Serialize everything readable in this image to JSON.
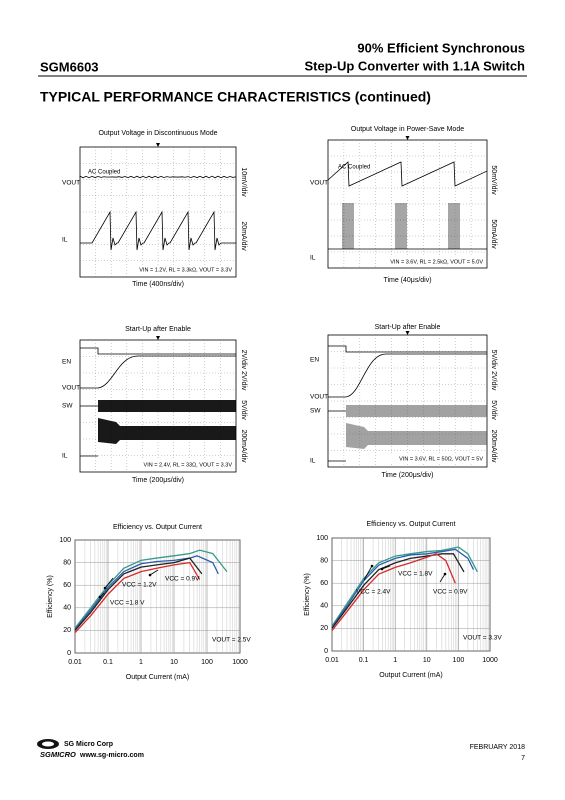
{
  "header": {
    "part": "SGM6603",
    "title_lines": [
      "90% Efficient Synchronous",
      "Step-Up Converter with 1.1A Switch"
    ]
  },
  "section_title": "TYPICAL PERFORMANCE CHARACTERISTICS (continued)",
  "scopes": [
    {
      "title": "Output Voltage in Discontinuous Mode",
      "labels": [
        "VOUT",
        "IL"
      ],
      "note": "AC Coupled",
      "scales": [
        "10mV/div",
        "20mA/div"
      ],
      "conditions": "VIN = 1.2V, RL = 3.3kΩ, VOUT = 3.3V",
      "time": "Time (400ns/div)"
    },
    {
      "title": "Output Voltage in Power-Save Mode",
      "labels": [
        "VOUT",
        "IL"
      ],
      "note": "AC Coupled",
      "scales": [
        "50mV/div",
        "50mA/div"
      ],
      "conditions": "VIN = 3.6V, RL = 2.5kΩ, VOUT = 5.0V",
      "time": "Time (40μs/div)"
    },
    {
      "title": "Start-Up after Enable",
      "labels": [
        "EN",
        "VOUT",
        "SW",
        "IL"
      ],
      "scales": [
        "2V/div 2V/div",
        "5V/div",
        "200mA/div"
      ],
      "conditions": "VIN = 2.4V, RL = 33Ω, VOUT = 3.3V",
      "time": "Time (200μs/div)"
    },
    {
      "title": "Start-Up after Enable",
      "labels": [
        "EN",
        "VOUT",
        "SW",
        "IL"
      ],
      "scales": [
        "5V/div 2V/div",
        "5V/div",
        "200mA/div"
      ],
      "conditions": "VIN = 3.6V, RL = 50Ω, VOUT = 5V",
      "time": "Time (200μs/div)"
    }
  ],
  "charts": [
    {
      "type": "line",
      "title": "Efficiency vs. Output Current",
      "x_label": "Output Current (mA)",
      "y_label": "Efficiency (%)",
      "xscale": "log",
      "xlim": [
        0.01,
        1000
      ],
      "xticks": [
        0.01,
        0.1,
        1,
        10,
        100,
        1000
      ],
      "ylim": [
        0,
        100
      ],
      "yticks": [
        0,
        20,
        40,
        60,
        80,
        100
      ],
      "grid": true,
      "series": [
        {
          "color": "#3a9a8a",
          "x": [
            0.01,
            0.03,
            0.1,
            0.3,
            1,
            3,
            10,
            30,
            60,
            150,
            400
          ],
          "values": [
            22,
            40,
            60,
            75,
            82,
            84,
            86,
            88,
            91,
            88,
            72
          ]
        },
        {
          "color": "#2a5fb0",
          "x": [
            0.01,
            0.03,
            0.1,
            0.3,
            1,
            3,
            10,
            30,
            50,
            150,
            220
          ],
          "values": [
            21,
            38,
            58,
            72,
            79,
            81,
            82,
            84,
            86,
            80,
            70
          ]
        },
        {
          "color": "#222222",
          "x": [
            0.01,
            0.03,
            0.1,
            0.3,
            1,
            3,
            10,
            30,
            70
          ],
          "values": [
            20,
            36,
            56,
            70,
            76,
            78,
            80,
            84,
            70
          ]
        },
        {
          "color": "#d62a2a",
          "x": [
            0.01,
            0.03,
            0.1,
            0.3,
            1,
            3,
            10,
            30,
            60
          ],
          "values": [
            18,
            33,
            52,
            66,
            72,
            75,
            78,
            80,
            65
          ]
        }
      ],
      "annotations": [
        "VCC = 1.2V",
        "VCC = 0.9V",
        "VCC =1.8 V",
        "VOUT = 2.5V"
      ]
    },
    {
      "type": "line",
      "title": "Efficiency vs. Output Current",
      "x_label": "Output Current (mA)",
      "y_label": "Efficiency (%)",
      "xscale": "log",
      "xlim": [
        0.01,
        1000
      ],
      "xticks": [
        0.01,
        0.1,
        1,
        10,
        100,
        1000
      ],
      "ylim": [
        0,
        100
      ],
      "yticks": [
        0,
        20,
        40,
        60,
        80,
        100
      ],
      "grid": true,
      "series": [
        {
          "color": "#3a9a8a",
          "x": [
            0.01,
            0.03,
            0.1,
            0.3,
            1,
            3,
            10,
            30,
            100,
            200,
            400
          ],
          "values": [
            22,
            42,
            64,
            78,
            84,
            86,
            88,
            89,
            92,
            86,
            70
          ]
        },
        {
          "color": "#2a5fb0",
          "x": [
            0.01,
            0.03,
            0.1,
            0.3,
            1,
            3,
            10,
            30,
            80,
            200,
            300
          ],
          "values": [
            21,
            40,
            62,
            76,
            82,
            85,
            86,
            88,
            90,
            82,
            72
          ]
        },
        {
          "color": "#222222",
          "x": [
            0.01,
            0.03,
            0.1,
            0.3,
            1,
            3,
            10,
            30,
            70,
            150
          ],
          "values": [
            20,
            38,
            58,
            72,
            78,
            82,
            84,
            86,
            86,
            70
          ]
        },
        {
          "color": "#d62a2a",
          "x": [
            0.01,
            0.03,
            0.1,
            0.3,
            1,
            3,
            10,
            20,
            40,
            80
          ],
          "values": [
            18,
            35,
            54,
            68,
            74,
            78,
            83,
            86,
            80,
            60
          ]
        }
      ],
      "annotations": [
        "VCC = 1.8V",
        "VCC = 2.4V",
        "VCC = 0.9V",
        "VOUT = 3.3V"
      ]
    }
  ],
  "footer": {
    "company": "SG Micro Corp",
    "brand": "SGMICRO",
    "url": "www.sg-micro.com",
    "date": "FEBRUARY 2018",
    "page": "7"
  }
}
